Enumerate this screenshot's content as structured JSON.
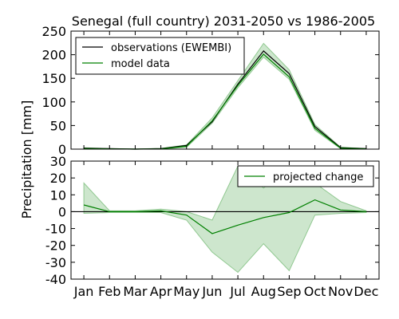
{
  "chart_data": [
    {
      "type": "line",
      "title": "Senegal (full country) 2031-2050 vs 1986-2005",
      "ylabel": "Precipitation [mm]",
      "categories": [
        "Jan",
        "Feb",
        "Mar",
        "Apr",
        "May",
        "Jun",
        "Jul",
        "Aug",
        "Sep",
        "Oct",
        "Nov",
        "Dec"
      ],
      "ylim": [
        0,
        250
      ],
      "yticks": [
        0,
        50,
        100,
        150,
        200,
        250
      ],
      "grid": false,
      "legend_position": "top-left",
      "series": [
        {
          "name": "observations (EWEMBI)",
          "color": "#000000",
          "values": [
            2,
            1,
            0,
            1,
            8,
            58,
            138,
            208,
            160,
            48,
            3,
            1
          ]
        },
        {
          "name": "model data",
          "color": "#008000",
          "values": [
            1,
            0.5,
            0,
            0.5,
            6,
            60,
            135,
            201,
            153,
            44,
            2,
            0.5
          ],
          "band_lower": [
            0,
            0,
            0,
            0,
            4,
            55,
            130,
            195,
            148,
            40,
            1,
            0
          ],
          "band_upper": [
            3,
            1,
            0.5,
            1.5,
            9,
            66,
            145,
            224,
            168,
            52,
            4,
            1
          ],
          "band_color": "#90c890"
        }
      ]
    },
    {
      "type": "line",
      "categories": [
        "Jan",
        "Feb",
        "Mar",
        "Apr",
        "May",
        "Jun",
        "Jul",
        "Aug",
        "Sep",
        "Oct",
        "Nov",
        "Dec"
      ],
      "ylim": [
        -40,
        30
      ],
      "yticks": [
        -40,
        -30,
        -20,
        -10,
        0,
        10,
        20,
        30
      ],
      "grid": false,
      "legend_position": "top-right",
      "zero_line": true,
      "series": [
        {
          "name": "projected change",
          "color": "#008000",
          "values": [
            4,
            0,
            0,
            0.5,
            -2,
            -13,
            -8,
            -3.5,
            -0.5,
            7,
            1,
            0
          ],
          "band_lower": [
            -1,
            -0.5,
            -0.5,
            -0.5,
            -5,
            -24,
            -36,
            -19,
            -35,
            -2,
            -1,
            -0.5
          ],
          "band_upper": [
            17,
            0.5,
            0.5,
            1.5,
            0,
            -5,
            27,
            14,
            27,
            17,
            6,
            0.5
          ],
          "band_color": "#90c890"
        }
      ]
    }
  ]
}
